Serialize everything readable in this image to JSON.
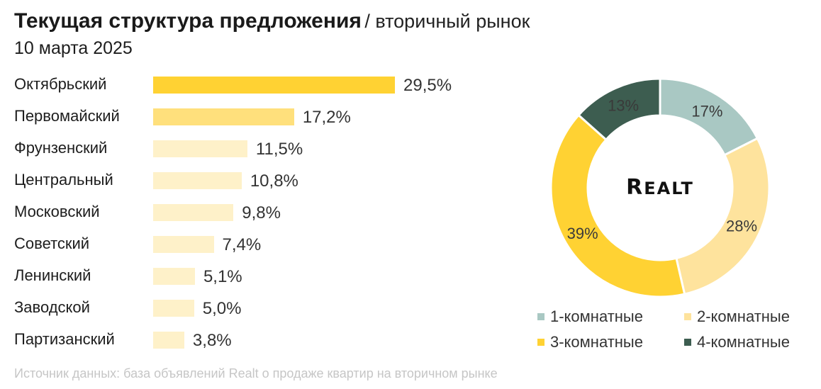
{
  "header": {
    "title": "Текущая структура предложения",
    "title_suffix": "/ вторичный рынок",
    "date": "10 марта 2025"
  },
  "logo": {
    "text": "REALT"
  },
  "source_note": "Источник данных: база объявлений Realt о продаже квартир на вторичном рынке",
  "chart_data": [
    {
      "type": "bar",
      "orientation": "horizontal",
      "categories": [
        "Октябрьский",
        "Первомайский",
        "Фрунзенский",
        "Центральный",
        "Московский",
        "Советский",
        "Ленинский",
        "Заводской",
        "Партизанский"
      ],
      "values": [
        29.5,
        17.2,
        11.5,
        10.8,
        9.8,
        7.4,
        5.1,
        5.0,
        3.8
      ],
      "data_labels": [
        "29,5%",
        "17,2%",
        "11,5%",
        "10,8%",
        "9,8%",
        "7,4%",
        "5,1%",
        "5,0%",
        "3,8%"
      ],
      "colors": [
        "#FFD233",
        "#FFE07C",
        "#FEF1C9",
        "#FEF1C9",
        "#FEF1C9",
        "#FEF1C9",
        "#FEF1C9",
        "#FEF1C9",
        "#FEF1C9"
      ],
      "grid": false
    },
    {
      "type": "pie",
      "variant": "donut",
      "categories": [
        "1-комнатные",
        "2-комнатные",
        "3-комнатные",
        "4-комнатные"
      ],
      "values": [
        17,
        28,
        39,
        13
      ],
      "data_labels": [
        "17%",
        "28%",
        "39%",
        "13%"
      ],
      "colors": [
        "#A9C8C3",
        "#FEE39D",
        "#FFD233",
        "#3D5D50"
      ],
      "legend_position": "bottom"
    }
  ]
}
